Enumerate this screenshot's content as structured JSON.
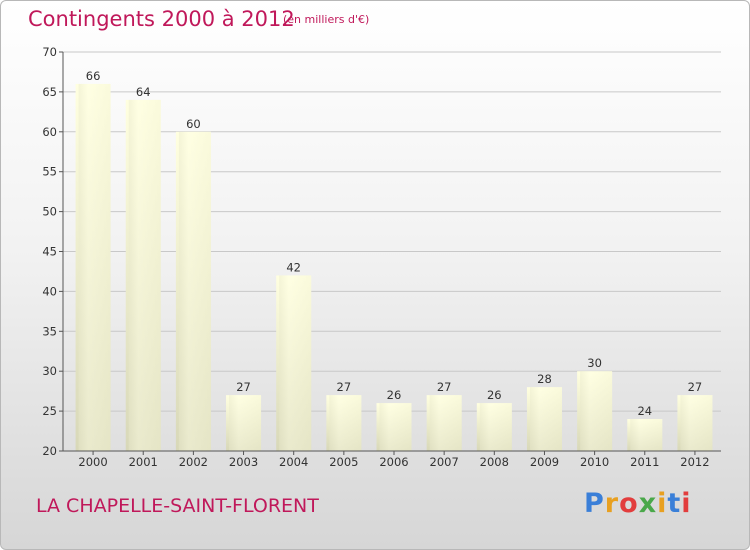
{
  "header": {
    "title": "Contingents 2000 à 2012",
    "subtitle": "(en milliers d'€)"
  },
  "footer": {
    "place": "LA CHAPELLE-SAINT-FLORENT",
    "logo": "Proxiti",
    "logo_colors": [
      "#3a7fd8",
      "#e8a020",
      "#e23d3d",
      "#4aa84a",
      "#e8a020",
      "#3a7fd8",
      "#e23d3d"
    ]
  },
  "colors": {
    "text_accent": "#c0185a",
    "bar_light": "#ffffe0",
    "bar_dark": "#d8d8b8"
  },
  "chart_data": {
    "type": "bar",
    "title": "Contingents 2000 à 2012",
    "subtitle": "(en milliers d'€)",
    "categories": [
      "2000",
      "2001",
      "2002",
      "2003",
      "2004",
      "2005",
      "2006",
      "2007",
      "2008",
      "2009",
      "2010",
      "2011",
      "2012"
    ],
    "values": [
      66,
      64,
      60,
      27,
      42,
      27,
      26,
      27,
      26,
      28,
      30,
      24,
      27
    ],
    "ylim": [
      20,
      70
    ],
    "yticks": [
      20,
      25,
      30,
      35,
      40,
      45,
      50,
      55,
      60,
      65,
      70
    ],
    "grid": true,
    "data_labels": true
  }
}
